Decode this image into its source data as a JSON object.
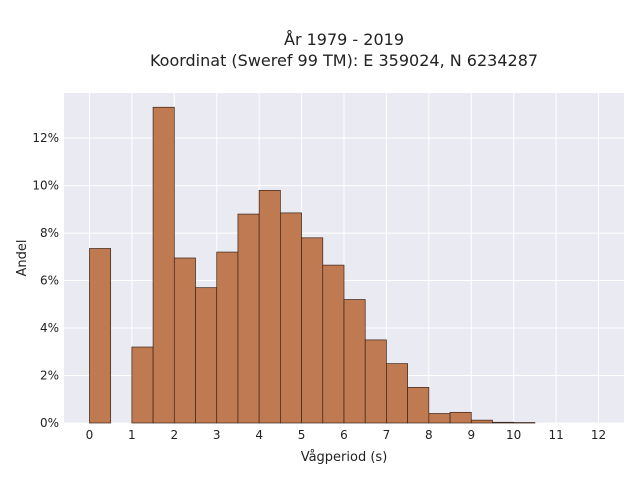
{
  "chart_data": {
    "type": "bar",
    "title_line1": "År 1979 - 2019",
    "title_line2": "Koordinat (Sweref 99 TM): E 359024, N 6234287",
    "xlabel": "Vågperiod (s)",
    "ylabel": "Andel",
    "xlim": [
      -0.6,
      12.6
    ],
    "ylim": [
      0,
      13.9
    ],
    "bin_width": 0.5,
    "x_ticks": [
      0,
      1,
      2,
      3,
      4,
      5,
      6,
      7,
      8,
      9,
      10,
      11,
      12
    ],
    "y_ticks": [
      0,
      2,
      4,
      6,
      8,
      10,
      12
    ],
    "y_tick_suffix": "%",
    "grid": true,
    "bar_color": "#c07a52",
    "bar_edge_color": "#3a2418",
    "plot_bg": "#eaeaf2",
    "bins": [
      {
        "x0": 0.0,
        "value": 7.35
      },
      {
        "x0": 0.5,
        "value": 0
      },
      {
        "x0": 1.0,
        "value": 3.2
      },
      {
        "x0": 1.5,
        "value": 13.3
      },
      {
        "x0": 2.0,
        "value": 6.95
      },
      {
        "x0": 2.5,
        "value": 5.7
      },
      {
        "x0": 3.0,
        "value": 7.2
      },
      {
        "x0": 3.5,
        "value": 8.8
      },
      {
        "x0": 4.0,
        "value": 9.8
      },
      {
        "x0": 4.5,
        "value": 8.85
      },
      {
        "x0": 5.0,
        "value": 7.8
      },
      {
        "x0": 5.5,
        "value": 6.65
      },
      {
        "x0": 6.0,
        "value": 5.2
      },
      {
        "x0": 6.5,
        "value": 3.5
      },
      {
        "x0": 7.0,
        "value": 2.5
      },
      {
        "x0": 7.5,
        "value": 1.5
      },
      {
        "x0": 8.0,
        "value": 0.4
      },
      {
        "x0": 8.5,
        "value": 0.45
      },
      {
        "x0": 9.0,
        "value": 0.12
      },
      {
        "x0": 9.5,
        "value": 0.03
      },
      {
        "x0": 10.0,
        "value": 0.02
      }
    ]
  }
}
